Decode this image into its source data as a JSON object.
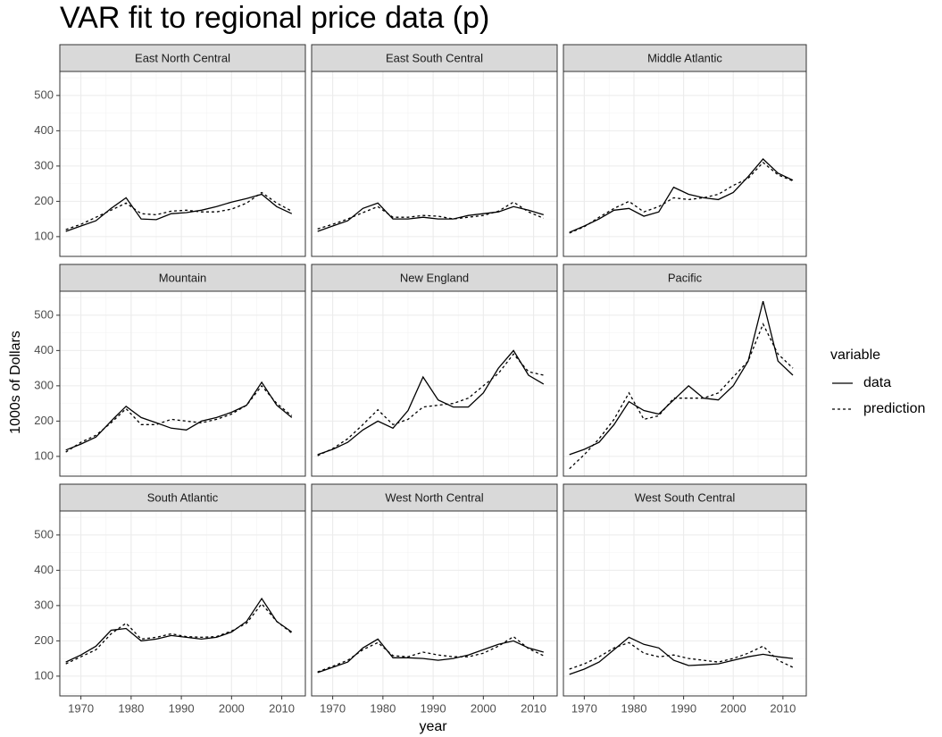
{
  "title": "VAR fit to regional price data (p)",
  "x_label": "year",
  "y_label": "1000s of Dollars",
  "legend_title": "variable",
  "xlim": [
    1965.8,
    2014.7
  ],
  "ylim": [
    44,
    568
  ],
  "xticks": [
    1970,
    1980,
    1990,
    2000,
    2010
  ],
  "yticks": [
    100,
    200,
    300,
    400,
    500
  ],
  "x_minor_ticks": [
    1975,
    1985,
    1995,
    2005
  ],
  "y_minor_ticks": [
    50,
    150,
    250,
    350,
    450,
    550
  ],
  "grid": true,
  "chart_data": [
    {
      "type": "line",
      "title": "East North Central",
      "x": [
        1967,
        1970,
        1973,
        1976,
        1979,
        1982,
        1985,
        1988,
        1991,
        1994,
        1997,
        2000,
        2003,
        2006,
        2009,
        2012
      ],
      "series": [
        {
          "name": "data",
          "color": "#000000",
          "linetype": "solid",
          "values": [
            115,
            130,
            145,
            180,
            210,
            150,
            148,
            165,
            168,
            175,
            185,
            198,
            208,
            220,
            185,
            165
          ]
        },
        {
          "name": "prediction",
          "color": "#000000",
          "linetype": "dashed",
          "values": [
            120,
            135,
            155,
            175,
            195,
            165,
            162,
            172,
            175,
            170,
            170,
            178,
            195,
            225,
            195,
            172
          ]
        }
      ]
    },
    {
      "type": "line",
      "title": "East South Central",
      "x": [
        1967,
        1970,
        1973,
        1976,
        1979,
        1982,
        1985,
        1988,
        1991,
        1994,
        1997,
        2000,
        2003,
        2006,
        2009,
        2012
      ],
      "series": [
        {
          "name": "data",
          "color": "#000000",
          "linetype": "solid",
          "values": [
            115,
            130,
            145,
            180,
            195,
            150,
            150,
            155,
            150,
            150,
            160,
            165,
            170,
            185,
            175,
            162
          ]
        },
        {
          "name": "prediction",
          "color": "#000000",
          "linetype": "dashed",
          "values": [
            122,
            135,
            150,
            168,
            185,
            155,
            155,
            160,
            158,
            150,
            155,
            160,
            172,
            198,
            170,
            152
          ]
        }
      ]
    },
    {
      "type": "line",
      "title": "Middle Atlantic",
      "x": [
        1967,
        1970,
        1973,
        1976,
        1979,
        1982,
        1985,
        1988,
        1991,
        1994,
        1997,
        2000,
        2003,
        2006,
        2009,
        2012
      ],
      "series": [
        {
          "name": "data",
          "color": "#000000",
          "linetype": "solid",
          "values": [
            112,
            130,
            150,
            175,
            180,
            158,
            170,
            240,
            220,
            210,
            205,
            225,
            270,
            320,
            280,
            260
          ]
        },
        {
          "name": "prediction",
          "color": "#000000",
          "linetype": "dashed",
          "values": [
            110,
            128,
            155,
            180,
            200,
            170,
            185,
            210,
            205,
            210,
            220,
            245,
            265,
            310,
            275,
            258
          ]
        }
      ]
    },
    {
      "type": "line",
      "title": "Mountain",
      "x": [
        1967,
        1970,
        1973,
        1976,
        1979,
        1982,
        1985,
        1988,
        1991,
        1994,
        1997,
        2000,
        2003,
        2006,
        2009,
        2012
      ],
      "series": [
        {
          "name": "data",
          "color": "#000000",
          "linetype": "solid",
          "values": [
            118,
            135,
            155,
            200,
            242,
            210,
            195,
            180,
            175,
            200,
            210,
            225,
            245,
            310,
            245,
            210
          ]
        },
        {
          "name": "prediction",
          "color": "#000000",
          "linetype": "dashed",
          "values": [
            112,
            140,
            160,
            195,
            235,
            190,
            190,
            205,
            200,
            195,
            205,
            220,
            245,
            300,
            250,
            215
          ]
        }
      ]
    },
    {
      "type": "line",
      "title": "New England",
      "x": [
        1967,
        1970,
        1973,
        1976,
        1979,
        1982,
        1985,
        1988,
        1991,
        1994,
        1997,
        2000,
        2003,
        2006,
        2009,
        2012
      ],
      "series": [
        {
          "name": "data",
          "color": "#000000",
          "linetype": "solid",
          "values": [
            105,
            120,
            140,
            175,
            200,
            180,
            230,
            325,
            260,
            240,
            240,
            280,
            350,
            400,
            330,
            305
          ]
        },
        {
          "name": "prediction",
          "color": "#000000",
          "linetype": "dashed",
          "values": [
            102,
            122,
            150,
            190,
            232,
            190,
            205,
            240,
            245,
            250,
            265,
            300,
            335,
            390,
            340,
            330
          ]
        }
      ]
    },
    {
      "type": "line",
      "title": "Pacific",
      "x": [
        1967,
        1970,
        1973,
        1976,
        1979,
        1982,
        1985,
        1988,
        1991,
        1994,
        1997,
        2000,
        2003,
        2006,
        2009,
        2012
      ],
      "series": [
        {
          "name": "data",
          "color": "#000000",
          "linetype": "solid",
          "values": [
            105,
            120,
            140,
            190,
            255,
            230,
            220,
            260,
            300,
            265,
            260,
            300,
            370,
            540,
            370,
            330
          ]
        },
        {
          "name": "prediction",
          "color": "#000000",
          "linetype": "dashed",
          "values": [
            65,
            105,
            150,
            205,
            280,
            205,
            215,
            265,
            265,
            265,
            280,
            325,
            370,
            475,
            390,
            350
          ]
        }
      ]
    },
    {
      "type": "line",
      "title": "South Atlantic",
      "x": [
        1967,
        1970,
        1973,
        1976,
        1979,
        1982,
        1985,
        1988,
        1991,
        1994,
        1997,
        2000,
        2003,
        2006,
        2009,
        2012
      ],
      "series": [
        {
          "name": "data",
          "color": "#000000",
          "linetype": "solid",
          "values": [
            140,
            160,
            185,
            230,
            235,
            200,
            205,
            215,
            210,
            205,
            210,
            225,
            255,
            320,
            255,
            225
          ]
        },
        {
          "name": "prediction",
          "color": "#000000",
          "linetype": "dashed",
          "values": [
            135,
            155,
            175,
            220,
            250,
            205,
            210,
            220,
            212,
            210,
            212,
            228,
            250,
            305,
            255,
            222
          ]
        }
      ]
    },
    {
      "type": "line",
      "title": "West North Central",
      "x": [
        1967,
        1970,
        1973,
        1976,
        1979,
        1982,
        1985,
        1988,
        1991,
        1994,
        1997,
        2000,
        2003,
        2006,
        2009,
        2012
      ],
      "series": [
        {
          "name": "data",
          "color": "#000000",
          "linetype": "solid",
          "values": [
            110,
            125,
            140,
            180,
            205,
            152,
            152,
            150,
            145,
            150,
            160,
            175,
            190,
            200,
            180,
            168
          ]
        },
        {
          "name": "prediction",
          "color": "#000000",
          "linetype": "dashed",
          "values": [
            112,
            128,
            145,
            175,
            195,
            158,
            155,
            168,
            160,
            155,
            155,
            165,
            185,
            212,
            178,
            158
          ]
        }
      ]
    },
    {
      "type": "line",
      "title": "West South Central",
      "x": [
        1967,
        1970,
        1973,
        1976,
        1979,
        1982,
        1985,
        1988,
        1991,
        1994,
        1997,
        2000,
        2003,
        2006,
        2009,
        2012
      ],
      "series": [
        {
          "name": "data",
          "color": "#000000",
          "linetype": "solid",
          "values": [
            105,
            120,
            140,
            175,
            210,
            190,
            180,
            145,
            130,
            132,
            135,
            145,
            155,
            162,
            155,
            150
          ]
        },
        {
          "name": "prediction",
          "color": "#000000",
          "linetype": "dashed",
          "values": [
            120,
            135,
            155,
            180,
            195,
            165,
            155,
            160,
            150,
            145,
            140,
            150,
            165,
            185,
            145,
            125
          ]
        }
      ]
    }
  ]
}
